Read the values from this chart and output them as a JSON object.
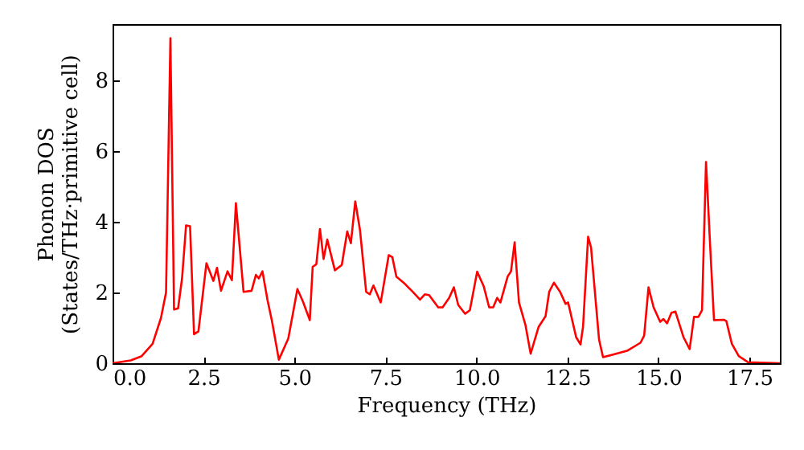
{
  "chart_data": {
    "type": "line",
    "xlabel": "Frequency (THz)",
    "ylabel": "Phonon DOS\n(States/THz·primitive cell)",
    "xlim": [
      0,
      18.34
    ],
    "ylim": [
      0,
      9.6
    ],
    "xticks": [
      {
        "value": 0,
        "label": "0.0"
      },
      {
        "value": 2.5,
        "label": "2.5"
      },
      {
        "value": 5,
        "label": "5.0"
      },
      {
        "value": 7.5,
        "label": "7.5"
      },
      {
        "value": 10,
        "label": "10.0"
      },
      {
        "value": 12.5,
        "label": "12.5"
      },
      {
        "value": 15,
        "label": "15.0"
      },
      {
        "value": 17.5,
        "label": "17.5"
      }
    ],
    "yticks": [
      0,
      2,
      4,
      6,
      8
    ],
    "grid": false,
    "line_style": "solid",
    "series": [
      {
        "color": "#ff0000",
        "x": [
          0,
          0.5,
          0.8,
          1.1,
          1.33,
          1.47,
          1.59,
          1.69,
          1.8,
          1.91,
          2.02,
          2.13,
          2.24,
          2.36,
          2.58,
          2.77,
          2.87,
          2.98,
          3.16,
          3.28,
          3.39,
          3.6,
          3.82,
          3.94,
          4.02,
          4.12,
          4.26,
          4.38,
          4.57,
          4.83,
          5.08,
          5.23,
          5.42,
          5.5,
          5.6,
          5.7,
          5.8,
          5.9,
          6.11,
          6.3,
          6.45,
          6.55,
          6.67,
          6.8,
          6.97,
          7.07,
          7.17,
          7.37,
          7.59,
          7.69,
          7.8,
          8.03,
          8.25,
          8.45,
          8.58,
          8.7,
          8.95,
          9.07,
          9.25,
          9.38,
          9.5,
          9.69,
          9.82,
          10.02,
          10.2,
          10.35,
          10.46,
          10.57,
          10.66,
          10.86,
          10.95,
          11.05,
          11.17,
          11.35,
          11.49,
          11.71,
          11.9,
          12.0,
          12.13,
          12.3,
          12.45,
          12.52,
          12.74,
          12.86,
          12.93,
          13.07,
          13.15,
          13.37,
          13.48,
          14.14,
          14.51,
          14.61,
          14.73,
          14.87,
          15.05,
          15.14,
          15.24,
          15.36,
          15.47,
          15.69,
          15.86,
          15.98,
          16.1,
          16.2,
          16.31,
          16.43,
          16.53,
          16.8,
          16.87,
          17.02,
          17.21,
          17.46,
          18.34
        ],
        "values": [
          0,
          0.08,
          0.2,
          0.55,
          1.28,
          2.0,
          9.2,
          1.52,
          1.55,
          2.4,
          3.9,
          3.88,
          0.82,
          0.9,
          2.83,
          2.33,
          2.7,
          2.05,
          2.6,
          2.35,
          4.53,
          2.02,
          2.05,
          2.5,
          2.4,
          2.6,
          1.78,
          1.2,
          0.1,
          0.7,
          2.1,
          1.75,
          1.22,
          2.73,
          2.8,
          3.8,
          2.95,
          3.5,
          2.63,
          2.78,
          3.73,
          3.4,
          4.58,
          3.77,
          2.02,
          1.95,
          2.2,
          1.72,
          3.06,
          3.0,
          2.45,
          2.25,
          2.02,
          1.8,
          1.95,
          1.93,
          1.58,
          1.58,
          1.85,
          2.15,
          1.65,
          1.4,
          1.5,
          2.59,
          2.18,
          1.58,
          1.58,
          1.85,
          1.72,
          2.46,
          2.6,
          3.42,
          1.72,
          1.07,
          0.27,
          1.03,
          1.33,
          2.02,
          2.28,
          2.02,
          1.68,
          1.72,
          0.74,
          0.53,
          1.03,
          3.58,
          3.28,
          0.67,
          0.17,
          0.35,
          0.58,
          0.78,
          2.15,
          1.58,
          1.17,
          1.25,
          1.13,
          1.43,
          1.46,
          0.74,
          0.4,
          1.31,
          1.31,
          1.5,
          5.7,
          3.19,
          1.22,
          1.23,
          1.19,
          0.55,
          0.2,
          0.03,
          0
        ]
      }
    ]
  }
}
